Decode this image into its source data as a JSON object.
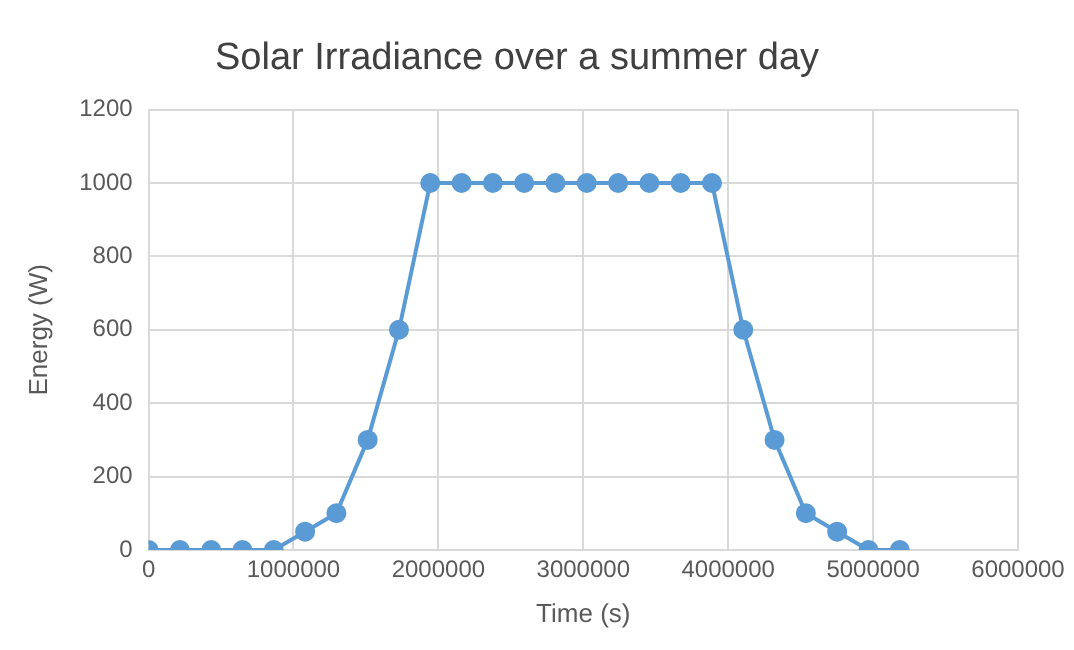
{
  "chart_data": {
    "type": "line",
    "title": "Solar Irradiance over a summer day",
    "xlabel": "Time (s)",
    "ylabel": "Energy (W)",
    "x": [
      0,
      216000,
      432000,
      648000,
      864000,
      1080000,
      1296000,
      1512000,
      1728000,
      1944000,
      2160000,
      2376000,
      2592000,
      2808000,
      3024000,
      3240000,
      3456000,
      3672000,
      3888000,
      4104000,
      4320000,
      4536000,
      4752000,
      4968000,
      5184000
    ],
    "series": [
      {
        "color": "#5b9bd5",
        "values": [
          0,
          0,
          0,
          0,
          0,
          50,
          100,
          300,
          600,
          1000,
          1000,
          1000,
          1000,
          1000,
          1000,
          1000,
          1000,
          1000,
          1000,
          600,
          300,
          100,
          50,
          0,
          0
        ]
      }
    ],
    "xlim": [
      0,
      6000000
    ],
    "xticks": [
      0,
      1000000,
      2000000,
      3000000,
      4000000,
      5000000,
      6000000
    ],
    "ylim": [
      0,
      1200
    ],
    "yticks": [
      0,
      200,
      400,
      600,
      800,
      1000,
      1200
    ],
    "grid": true,
    "legend": false,
    "marker": "circle",
    "line_style": "solid"
  }
}
